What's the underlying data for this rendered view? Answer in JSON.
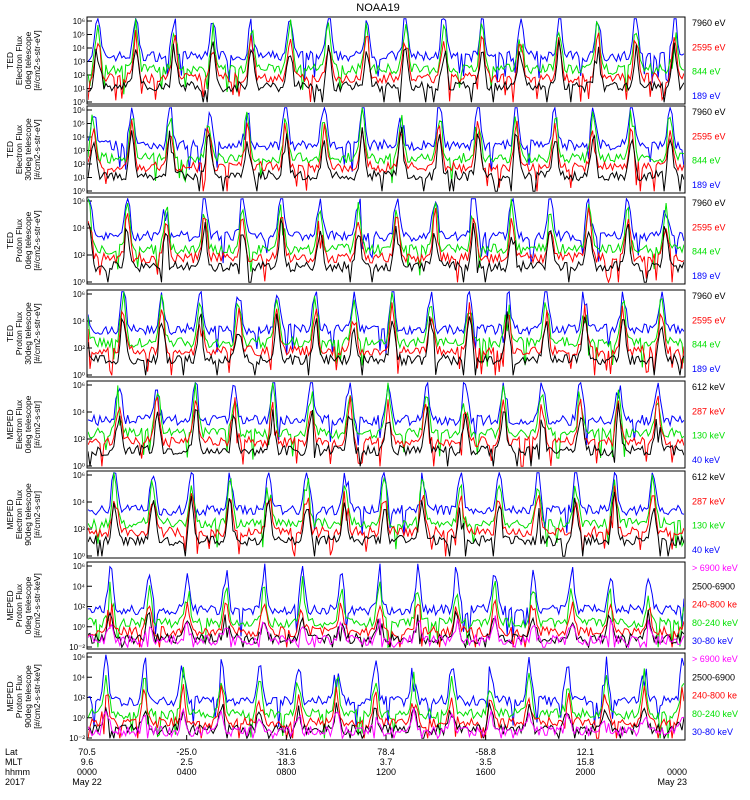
{
  "title": "NOAA19",
  "colors": {
    "black": "#000000",
    "blue": "#0000ff",
    "red": "#ff0000",
    "green": "#00e000",
    "magenta": "#ff00ff"
  },
  "chart_data": [
    {
      "type": "line",
      "ylabel": [
        "TED",
        "Electron Flux",
        "0deg telescope",
        "[#/cm2-s-str-eV]"
      ],
      "yticks": [
        "10⁰",
        "10¹",
        "10²",
        "10³",
        "10⁴",
        "10⁵",
        "10⁶"
      ],
      "series": [
        {
          "name": "7960 eV",
          "color": "#000000"
        },
        {
          "name": "2595 eV",
          "color": "#ff0000"
        },
        {
          "name": "844 eV",
          "color": "#00e000"
        },
        {
          "name": "189 eV",
          "color": "#0000ff"
        }
      ]
    },
    {
      "type": "line",
      "ylabel": [
        "TED",
        "Electron Flux",
        "30deg telescope",
        "[#/cm2-s-str-eV]"
      ],
      "yticks": [
        "10⁰",
        "10¹",
        "10²",
        "10³",
        "10⁴",
        "10⁵",
        "10⁶"
      ],
      "series": [
        {
          "name": "7960 eV",
          "color": "#000000"
        },
        {
          "name": "2595 eV",
          "color": "#ff0000"
        },
        {
          "name": "844 eV",
          "color": "#00e000"
        },
        {
          "name": "189 eV",
          "color": "#0000ff"
        }
      ]
    },
    {
      "type": "line",
      "ylabel": [
        "TED",
        "Proton Flux",
        "0deg telescope",
        "[#/cm2-s-str-eV]"
      ],
      "yticks": [
        "10⁰",
        "10²",
        "10⁴",
        "10⁶"
      ],
      "series": [
        {
          "name": "7960 eV",
          "color": "#000000"
        },
        {
          "name": "2595 eV",
          "color": "#ff0000"
        },
        {
          "name": "844 eV",
          "color": "#00e000"
        },
        {
          "name": "189 eV",
          "color": "#0000ff"
        }
      ]
    },
    {
      "type": "line",
      "ylabel": [
        "TED",
        "Proton Flux",
        "30deg telescope",
        "[#/cm2-s-str-eV]"
      ],
      "yticks": [
        "10⁰",
        "10²",
        "10⁴",
        "10⁶"
      ],
      "series": [
        {
          "name": "7960 eV",
          "color": "#000000"
        },
        {
          "name": "2595 eV",
          "color": "#ff0000"
        },
        {
          "name": "844 eV",
          "color": "#00e000"
        },
        {
          "name": "189 eV",
          "color": "#0000ff"
        }
      ]
    },
    {
      "type": "line",
      "ylabel": [
        "MEPED",
        "Electron Flux",
        "0deg telescope",
        "[#/cm2-s-str]"
      ],
      "yticks": [
        "10⁰",
        "10²",
        "10⁴",
        "10⁶"
      ],
      "series": [
        {
          "name": "612 keV",
          "color": "#000000"
        },
        {
          "name": "287 keV",
          "color": "#ff0000"
        },
        {
          "name": "130 keV",
          "color": "#00e000"
        },
        {
          "name": "40 keV",
          "color": "#0000ff"
        }
      ]
    },
    {
      "type": "line",
      "ylabel": [
        "MEPED",
        "Electron Flux",
        "90deg telescope",
        "[#/cm2-s-str]"
      ],
      "yticks": [
        "10⁰",
        "10²",
        "10⁴",
        "10⁶"
      ],
      "series": [
        {
          "name": "612 keV",
          "color": "#000000"
        },
        {
          "name": "287 keV",
          "color": "#ff0000"
        },
        {
          "name": "130 keV",
          "color": "#00e000"
        },
        {
          "name": "40 keV",
          "color": "#0000ff"
        }
      ]
    },
    {
      "type": "line",
      "ylabel": [
        "MEPED",
        "Proton Flux",
        "0deg telescope",
        "[#/cm2-s-str-keV]"
      ],
      "yticks": [
        "10⁻²",
        "10⁰",
        "10²",
        "10⁴",
        "10⁶"
      ],
      "series": [
        {
          "name": "> 6900 keV",
          "color": "#ff00ff"
        },
        {
          "name": "2500-6900",
          "color": "#000000"
        },
        {
          "name": "240-800 ke",
          "color": "#ff0000"
        },
        {
          "name": "80-240 keV",
          "color": "#00e000"
        },
        {
          "name": "30-80 keV",
          "color": "#0000ff"
        }
      ]
    },
    {
      "type": "line",
      "ylabel": [
        "MEPED",
        "Proton Flux",
        "90deg telescope",
        "[#/cm2-s-str-keV]"
      ],
      "yticks": [
        "10⁻²",
        "10⁰",
        "10²",
        "10⁴",
        "10⁶"
      ],
      "series": [
        {
          "name": "> 6900 keV",
          "color": "#ff00ff"
        },
        {
          "name": "2500-6900",
          "color": "#000000"
        },
        {
          "name": "240-800 ke",
          "color": "#ff0000"
        },
        {
          "name": "80-240 keV",
          "color": "#00e000"
        },
        {
          "name": "30-80 keV",
          "color": "#0000ff"
        }
      ]
    }
  ],
  "xaxis": {
    "row_labels": [
      "Lat",
      "MLT",
      "hhmm",
      "2017"
    ],
    "columns": [
      {
        "values": [
          "70.5",
          "9.6",
          "0000",
          "May 22"
        ]
      },
      {
        "values": [
          "-25.0",
          "2.5",
          "0400",
          ""
        ]
      },
      {
        "values": [
          "-31.6",
          "18.3",
          "0800",
          ""
        ]
      },
      {
        "values": [
          "78.4",
          "3.7",
          "1200",
          ""
        ]
      },
      {
        "values": [
          "-58.8",
          "3.5",
          "1600",
          ""
        ]
      },
      {
        "values": [
          "12.1",
          "15.8",
          "2000",
          ""
        ]
      },
      {
        "values": [
          "",
          "",
          "0000",
          "May 23"
        ]
      }
    ]
  }
}
